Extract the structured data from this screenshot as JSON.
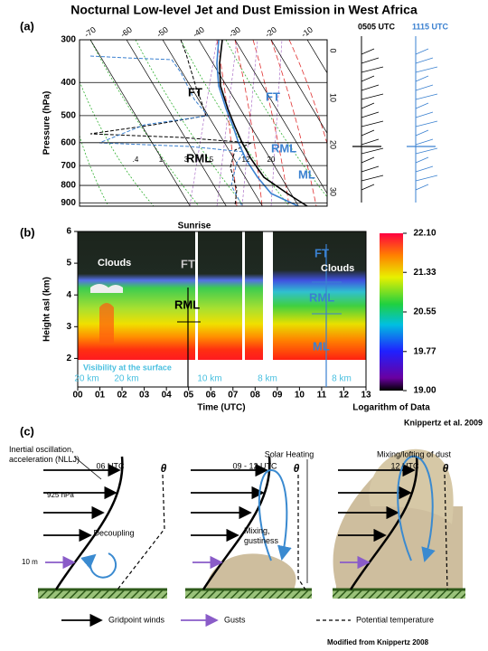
{
  "title": "Nocturnal Low-level Jet and Dust Emission in West Africa",
  "panel_a": {
    "label": "(a)",
    "y_axis_label": "Pressure (hPa)",
    "log_scale": true,
    "ylim": [
      300,
      920
    ],
    "yticks": [
      300,
      400,
      500,
      600,
      700,
      800,
      900
    ],
    "temperature_ticks": [
      -70,
      -60,
      -50,
      -40,
      -30,
      -20,
      -10
    ],
    "right_ticks": [
      0,
      10,
      20,
      30
    ],
    "mixing_ratio_labels": [
      ".4",
      "1",
      "3",
      "5",
      "12",
      "20"
    ],
    "black_labels": {
      "ft": "FT",
      "rml": "RML"
    },
    "blue_labels": {
      "ft": "FT",
      "rml": "RML",
      "ml": "ML"
    },
    "wind_times": [
      "0505 UTC",
      "1115 UTC"
    ]
  },
  "panel_b": {
    "label": "(b)",
    "y_axis_label": "Height asl (km)",
    "x_axis_label": "Time (UTC)",
    "ylim": [
      1.1,
      6
    ],
    "yticks": [
      2,
      3,
      4,
      5,
      6
    ],
    "xlim": [
      0,
      13
    ],
    "xticks": [
      {
        "value": 0,
        "label": "00"
      },
      {
        "value": 1,
        "label": "01"
      },
      {
        "value": 2,
        "label": "02"
      },
      {
        "value": 3,
        "label": "03"
      },
      {
        "value": 4,
        "label": "04"
      },
      {
        "value": 5,
        "label": "05"
      },
      {
        "value": 6,
        "label": "06"
      },
      {
        "value": 7,
        "label": "07"
      },
      {
        "value": 8,
        "label": "08"
      },
      {
        "value": 9,
        "label": "09"
      },
      10,
      11,
      12,
      13
    ],
    "colorbar_lim": [
      19.0,
      22.1
    ],
    "colorbar_ticks": [
      {
        "value": 22.1,
        "label": "22.10"
      },
      21.33,
      20.55,
      19.77,
      {
        "value": 19.0,
        "label": "19.00"
      }
    ],
    "colorbar_label": "Logarithm of Data",
    "sunrise": "Sunrise",
    "annotations_left": {
      "clouds": "Clouds",
      "ft": "FT",
      "rml": "RML"
    },
    "annotations_right": {
      "ft": "FT",
      "clouds": "Clouds",
      "rml": "RML",
      "ml": "ML"
    },
    "visibility_title": "Visibility at the surface",
    "visibility_labels": [
      "20 km",
      "20 km",
      "10 km",
      "8 km",
      "8 km"
    ],
    "credit": "Knippertz et al. 2009"
  },
  "panel_c": {
    "label": "(c)",
    "inertial": "Inertial oscillation, acceleration (NLLJ)",
    "level_925": "925 hPa",
    "level_10m": "10 m",
    "times": [
      "06 UTC",
      "09 - 12 UTC",
      "12 UTC"
    ],
    "theta": [
      "θ",
      "θ",
      "θ"
    ],
    "decoupling": "Decoupling",
    "solar_heating": "Solar Heating",
    "mixing": "Mixing, gustiness",
    "lofting": "Mixing/lofting of dust",
    "legend": [
      "Gridpoint winds",
      "Gusts",
      "Potential temperature"
    ]
  },
  "footer": "Modified from Knippertz 2008"
}
